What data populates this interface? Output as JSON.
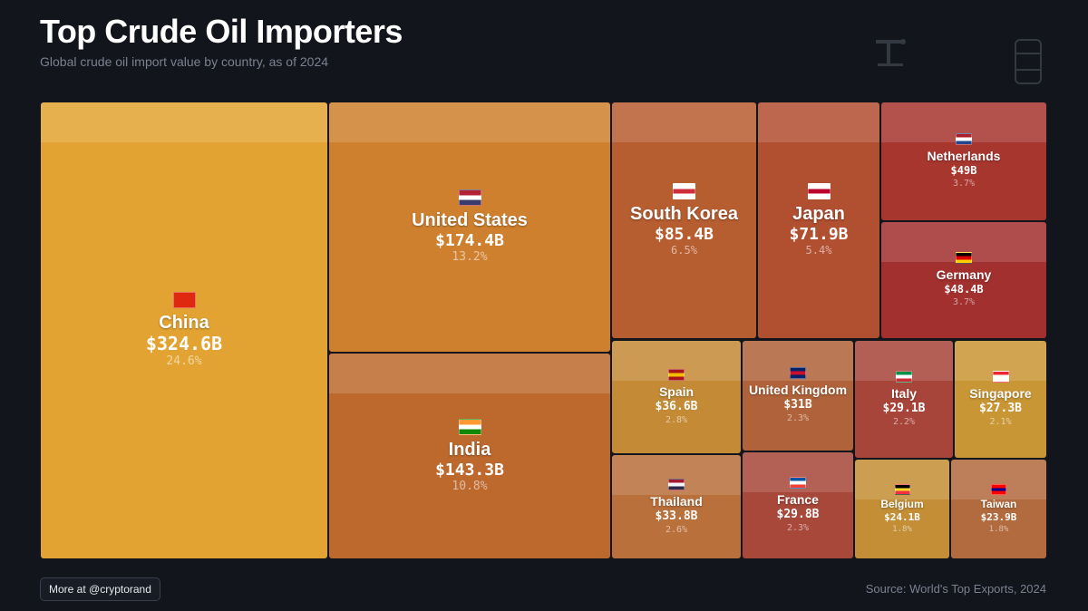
{
  "header": {
    "title": "Top Crude Oil Importers",
    "subtitle": "Global crude oil import value by country, as of 2024"
  },
  "footer": {
    "more_label": "More at @cryptorand",
    "source": "Source: World's Top Exports, 2024"
  },
  "chart_data": {
    "type": "treemap",
    "title": "Top Crude Oil Importers",
    "subtitle": "Global crude oil import value by country, as of 2024",
    "unit": "USD billions",
    "items": [
      {
        "id": "china",
        "name": "China",
        "value": 324.6,
        "label": "$324.6B",
        "share": "24.6%",
        "color": "#e3a332",
        "flag": [
          "#de2910",
          "#de2910",
          "#de2910"
        ]
      },
      {
        "id": "united-states",
        "name": "United States",
        "value": 174.4,
        "label": "$174.4B",
        "share": "13.2%",
        "color": "#cf802e",
        "flag": [
          "#b22234",
          "#ffffff",
          "#3c3b6e"
        ]
      },
      {
        "id": "india",
        "name": "India",
        "value": 143.3,
        "label": "$143.3B",
        "share": "10.8%",
        "color": "#bd692e",
        "flag": [
          "#ff9933",
          "#ffffff",
          "#138808"
        ]
      },
      {
        "id": "south-korea",
        "name": "South Korea",
        "value": 85.4,
        "label": "$85.4B",
        "share": "6.5%",
        "color": "#b75e31",
        "flag": [
          "#ffffff",
          "#cd2e3a",
          "#ffffff"
        ]
      },
      {
        "id": "japan",
        "name": "Japan",
        "value": 71.9,
        "label": "$71.9B",
        "share": "5.4%",
        "color": "#b14f31",
        "flag": [
          "#ffffff",
          "#bc002d",
          "#ffffff"
        ]
      },
      {
        "id": "netherlands",
        "name": "Netherlands",
        "value": 49,
        "label": "$49B",
        "share": "3.7%",
        "color": "#a7362f",
        "flag": [
          "#ae1c28",
          "#ffffff",
          "#21468b"
        ]
      },
      {
        "id": "germany",
        "name": "Germany",
        "value": 48.4,
        "label": "$48.4B",
        "share": "3.7%",
        "color": "#a2302f",
        "flag": [
          "#000000",
          "#dd0000",
          "#ffce00"
        ]
      },
      {
        "id": "spain",
        "name": "Spain",
        "value": 36.6,
        "label": "$36.6B",
        "share": "2.8%",
        "color": "#c48a36",
        "flag": [
          "#aa151b",
          "#f1bf00",
          "#aa151b"
        ]
      },
      {
        "id": "united-kingdom",
        "name": "United Kingdom",
        "value": 31,
        "label": "$31B",
        "share": "2.3%",
        "color": "#b0623a",
        "flag": [
          "#012169",
          "#c8102e",
          "#012169"
        ]
      },
      {
        "id": "italy",
        "name": "Italy",
        "value": 29.1,
        "label": "$29.1B",
        "share": "2.2%",
        "color": "#a8453a",
        "flag": [
          "#009246",
          "#ffffff",
          "#ce2b37"
        ]
      },
      {
        "id": "singapore",
        "name": "Singapore",
        "value": 27.3,
        "label": "$27.3B",
        "share": "2.1%",
        "color": "#c99635",
        "flag": [
          "#ee2536",
          "#ffffff",
          "#ffffff"
        ]
      },
      {
        "id": "thailand",
        "name": "Thailand",
        "value": 33.8,
        "label": "$33.8B",
        "share": "2.6%",
        "color": "#b9703b",
        "flag": [
          "#a51931",
          "#f4f5f8",
          "#2d2a4a"
        ]
      },
      {
        "id": "france",
        "name": "France",
        "value": 29.8,
        "label": "$29.8B",
        "share": "2.3%",
        "color": "#a8483a",
        "flag": [
          "#0055a4",
          "#ffffff",
          "#ef4135"
        ]
      },
      {
        "id": "belgium",
        "name": "Belgium",
        "value": 24.1,
        "label": "$24.1B",
        "share": "1.8%",
        "color": "#c38e36",
        "flag": [
          "#000000",
          "#fdda24",
          "#ef3340"
        ]
      },
      {
        "id": "taiwan",
        "name": "Taiwan",
        "value": 23.9,
        "label": "$23.9B",
        "share": "1.8%",
        "color": "#b26b3e",
        "flag": [
          "#fe0000",
          "#000095",
          "#fe0000"
        ]
      }
    ]
  }
}
